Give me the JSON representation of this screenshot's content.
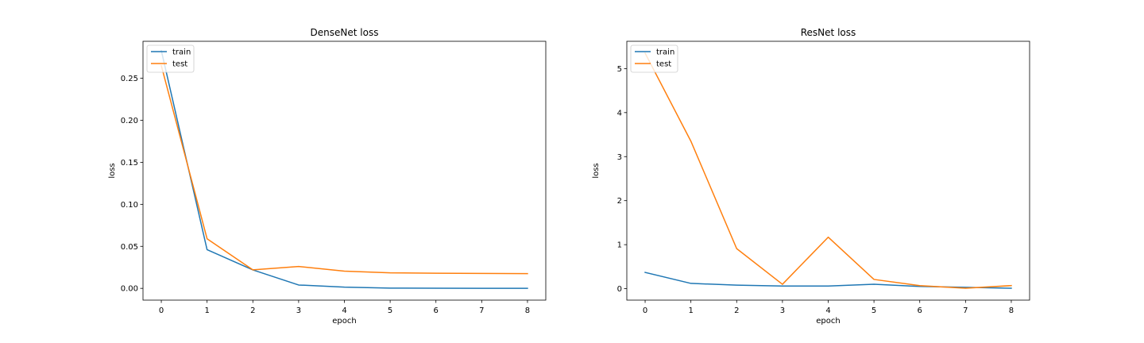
{
  "chart_data": [
    {
      "type": "line",
      "title": "DenseNet loss",
      "xlabel": "epoch",
      "ylabel": "loss",
      "x": [
        0,
        1,
        2,
        3,
        4,
        5,
        6,
        7,
        8
      ],
      "xticks": [
        0,
        1,
        2,
        3,
        4,
        5,
        6,
        7,
        8
      ],
      "yticks": [
        0.0,
        0.05,
        0.1,
        0.15,
        0.2,
        0.25
      ],
      "ytick_labels": [
        "0.00",
        "0.05",
        "0.10",
        "0.15",
        "0.20",
        "0.25"
      ],
      "xlim": [
        -0.4,
        8.4
      ],
      "ylim": [
        -0.014,
        0.294
      ],
      "grid": false,
      "legend": "upper left",
      "series": [
        {
          "name": "train",
          "color": "#1f77b4",
          "values": [
            0.283,
            0.046,
            0.022,
            0.004,
            0.0015,
            0.0003,
            0.0002,
            0.0001,
            0.0
          ]
        },
        {
          "name": "test",
          "color": "#ff7f0e",
          "values": [
            0.265,
            0.059,
            0.022,
            0.026,
            0.0205,
            0.0185,
            0.018,
            0.0178,
            0.0175
          ]
        }
      ]
    },
    {
      "type": "line",
      "title": "ResNet loss",
      "xlabel": "epoch",
      "ylabel": "loss",
      "x": [
        0,
        1,
        2,
        3,
        4,
        5,
        6,
        7,
        8
      ],
      "xticks": [
        0,
        1,
        2,
        3,
        4,
        5,
        6,
        7,
        8
      ],
      "yticks": [
        0,
        1,
        2,
        3,
        4,
        5
      ],
      "ytick_labels": [
        "0",
        "1",
        "2",
        "3",
        "4",
        "5"
      ],
      "xlim": [
        -0.4,
        8.4
      ],
      "ylim": [
        -0.26,
        5.62
      ],
      "grid": false,
      "legend": "upper left",
      "series": [
        {
          "name": "train",
          "color": "#1f77b4",
          "values": [
            0.37,
            0.12,
            0.08,
            0.06,
            0.06,
            0.1,
            0.05,
            0.03,
            0.01
          ]
        },
        {
          "name": "test",
          "color": "#ff7f0e",
          "values": [
            5.35,
            3.35,
            0.91,
            0.1,
            1.17,
            0.21,
            0.07,
            0.01,
            0.07
          ]
        }
      ]
    }
  ]
}
